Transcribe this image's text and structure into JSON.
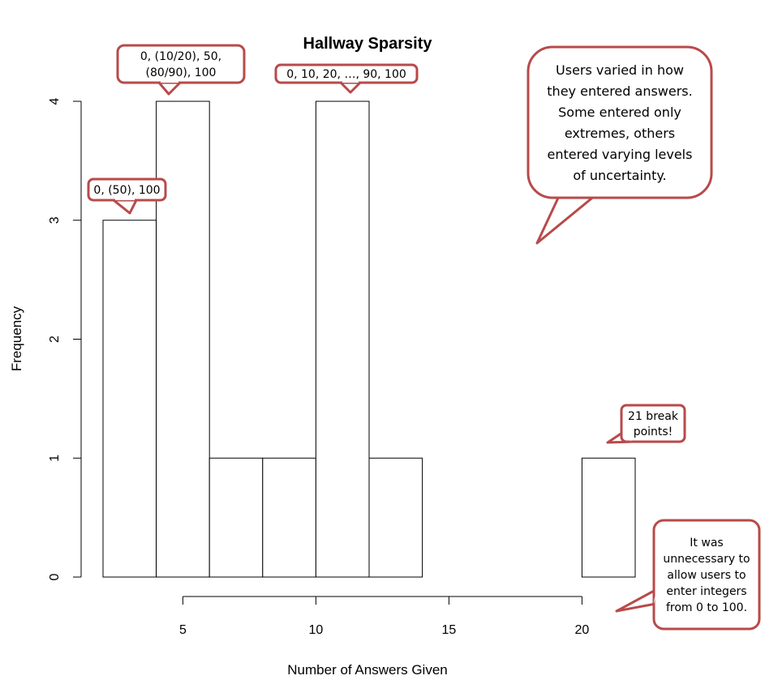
{
  "chart_data": {
    "type": "bar",
    "title": "Hallway Sparsity",
    "xlabel": "Number of Answers Given",
    "ylabel": "Frequency",
    "bins": [
      [
        2,
        4
      ],
      [
        4,
        6
      ],
      [
        6,
        8
      ],
      [
        8,
        10
      ],
      [
        10,
        12
      ],
      [
        12,
        14
      ],
      [
        14,
        16
      ],
      [
        16,
        18
      ],
      [
        18,
        20
      ],
      [
        20,
        22
      ]
    ],
    "values": [
      3,
      4,
      1,
      1,
      4,
      1,
      0,
      0,
      0,
      1
    ],
    "xlim": [
      2,
      22
    ],
    "ylim": [
      0,
      4
    ],
    "x_ticks": [
      5,
      10,
      15,
      20
    ],
    "y_ticks": [
      0,
      1,
      2,
      3,
      4
    ],
    "grid": false,
    "annotations": [
      {
        "lines": [
          "0, (50),  100"
        ]
      },
      {
        "lines": [
          "0, (10/20), 50,",
          "(80/90), 100"
        ]
      },
      {
        "lines": [
          "0, 10, 20, …, 90, 100"
        ]
      },
      {
        "lines": [
          "Users varied in how",
          "they entered answers.",
          "Some entered only",
          "extremes, others",
          "entered varying levels",
          "of uncertainty."
        ]
      },
      {
        "lines": [
          "21 break",
          "points!"
        ]
      },
      {
        "lines": [
          "It was",
          "unnecessary to",
          "allow users to",
          "enter integers",
          "from 0 to 100."
        ]
      }
    ],
    "colors": {
      "bar_fill": "#ffffff",
      "bar_stroke": "#000000",
      "callout_border": "#b84a4a"
    }
  }
}
